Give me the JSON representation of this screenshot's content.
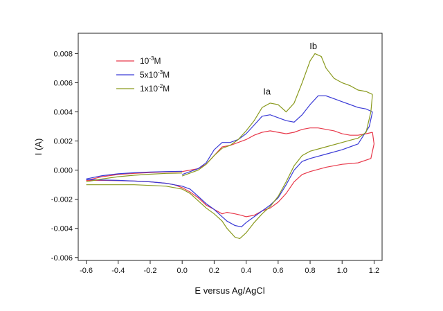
{
  "chart_data": {
    "type": "line",
    "title": "",
    "xlabel": "E versus Ag/AgCl",
    "ylabel": "I (A)",
    "xlim": [
      -0.65,
      1.25
    ],
    "ylim": [
      -0.0062,
      0.0094
    ],
    "x_ticks": [
      -0.6,
      -0.4,
      -0.2,
      0.0,
      0.2,
      0.4,
      0.6,
      0.8,
      1.0,
      1.2
    ],
    "x_tick_labels": [
      "-0.6",
      "-0.4",
      "-0.2",
      "0.0",
      "0.2",
      "0.4",
      "0.6",
      "0.8",
      "1.0",
      "1.2"
    ],
    "y_ticks": [
      -0.006,
      -0.004,
      -0.002,
      0.0,
      0.002,
      0.004,
      0.006,
      0.008
    ],
    "y_tick_labels": [
      "-0.006",
      "-0.004",
      "-0.002",
      "0.000",
      "0.002",
      "0.004",
      "0.006",
      "0.008"
    ],
    "grid": false,
    "legend_position": "top-left",
    "series": [
      {
        "label_base": "10",
        "label_exp": "-3",
        "label_unit": "M",
        "color": "#e8384a",
        "forward": [
          [
            -0.6,
            -0.0007
          ],
          [
            -0.5,
            -0.00045
          ],
          [
            -0.4,
            -0.0003
          ],
          [
            -0.3,
            -0.00022
          ],
          [
            -0.2,
            -0.00017
          ],
          [
            -0.1,
            -0.00012
          ],
          [
            0.0,
            -0.0001
          ]
        ],
        "forward2": [
          [
            0.0,
            -0.0001
          ],
          [
            0.1,
            0.0001
          ],
          [
            0.15,
            0.0004
          ],
          [
            0.2,
            0.001
          ],
          [
            0.25,
            0.0016
          ],
          [
            0.3,
            0.0017
          ],
          [
            0.35,
            0.0019
          ],
          [
            0.4,
            0.0021
          ],
          [
            0.45,
            0.0024
          ],
          [
            0.5,
            0.0026
          ],
          [
            0.55,
            0.0027
          ],
          [
            0.6,
            0.0026
          ],
          [
            0.65,
            0.0025
          ],
          [
            0.7,
            0.0026
          ],
          [
            0.75,
            0.0028
          ],
          [
            0.8,
            0.0029
          ],
          [
            0.85,
            0.0029
          ],
          [
            0.9,
            0.0028
          ],
          [
            0.95,
            0.0027
          ],
          [
            1.0,
            0.0025
          ],
          [
            1.05,
            0.0024
          ],
          [
            1.1,
            0.0024
          ],
          [
            1.15,
            0.0025
          ],
          [
            1.19,
            0.0026
          ]
        ],
        "reverse": [
          [
            1.19,
            0.0026
          ],
          [
            1.2,
            0.0018
          ],
          [
            1.18,
            0.0008
          ],
          [
            1.1,
            0.0005
          ],
          [
            1.0,
            0.0004
          ],
          [
            0.9,
            0.0002
          ],
          [
            0.8,
            -0.0001
          ],
          [
            0.75,
            -0.0003
          ],
          [
            0.7,
            -0.0008
          ],
          [
            0.65,
            -0.0016
          ],
          [
            0.6,
            -0.0022
          ],
          [
            0.55,
            -0.0026
          ],
          [
            0.5,
            -0.0028
          ],
          [
            0.45,
            -0.0031
          ],
          [
            0.4,
            -0.0032
          ],
          [
            0.37,
            -0.0031
          ],
          [
            0.33,
            -0.003
          ],
          [
            0.28,
            -0.0029
          ],
          [
            0.25,
            -0.003
          ],
          [
            0.2,
            -0.0027
          ],
          [
            0.15,
            -0.0024
          ],
          [
            0.1,
            -0.0019
          ],
          [
            0.05,
            -0.0015
          ],
          [
            0.0,
            -0.0012
          ],
          [
            -0.05,
            -0.001
          ],
          [
            -0.1,
            -0.0009
          ],
          [
            -0.2,
            -0.0008
          ],
          [
            -0.3,
            -0.00075
          ],
          [
            -0.4,
            -0.00072
          ],
          [
            -0.5,
            -0.0007
          ],
          [
            -0.6,
            -0.0007
          ]
        ]
      },
      {
        "label_base": "5x10",
        "label_exp": "-3",
        "label_unit": "M",
        "color": "#3a3ad6",
        "forward": [
          [
            -0.6,
            -0.0006
          ],
          [
            -0.5,
            -0.00038
          ],
          [
            -0.4,
            -0.00025
          ],
          [
            -0.3,
            -0.00018
          ],
          [
            -0.2,
            -0.00013
          ],
          [
            -0.1,
            -0.0001
          ],
          [
            0.0,
            -8e-05
          ]
        ],
        "forward2": [
          [
            0.0,
            -0.0003
          ],
          [
            0.1,
            0.0001
          ],
          [
            0.15,
            0.0005
          ],
          [
            0.2,
            0.0014
          ],
          [
            0.25,
            0.0019
          ],
          [
            0.3,
            0.0019
          ],
          [
            0.35,
            0.0021
          ],
          [
            0.4,
            0.0025
          ],
          [
            0.45,
            0.0031
          ],
          [
            0.5,
            0.0037
          ],
          [
            0.55,
            0.0038
          ],
          [
            0.6,
            0.0036
          ],
          [
            0.65,
            0.0034
          ],
          [
            0.7,
            0.0033
          ],
          [
            0.75,
            0.0038
          ],
          [
            0.8,
            0.0045
          ],
          [
            0.85,
            0.0051
          ],
          [
            0.9,
            0.0051
          ],
          [
            0.95,
            0.0049
          ],
          [
            1.0,
            0.0047
          ],
          [
            1.05,
            0.0045
          ],
          [
            1.1,
            0.0043
          ],
          [
            1.15,
            0.0042
          ],
          [
            1.19,
            0.004
          ]
        ],
        "reverse": [
          [
            1.19,
            0.004
          ],
          [
            1.17,
            0.003
          ],
          [
            1.1,
            0.0018
          ],
          [
            1.0,
            0.0014
          ],
          [
            0.9,
            0.0011
          ],
          [
            0.8,
            0.0008
          ],
          [
            0.75,
            0.0006
          ],
          [
            0.7,
            0.0
          ],
          [
            0.65,
            -0.001
          ],
          [
            0.6,
            -0.0019
          ],
          [
            0.55,
            -0.0024
          ],
          [
            0.5,
            -0.0028
          ],
          [
            0.45,
            -0.0032
          ],
          [
            0.4,
            -0.0036
          ],
          [
            0.37,
            -0.0039
          ],
          [
            0.33,
            -0.0038
          ],
          [
            0.28,
            -0.0035
          ],
          [
            0.25,
            -0.0032
          ],
          [
            0.2,
            -0.0027
          ],
          [
            0.15,
            -0.0023
          ],
          [
            0.1,
            -0.0018
          ],
          [
            0.05,
            -0.0013
          ],
          [
            0.0,
            -0.0011
          ],
          [
            -0.1,
            -0.0009
          ],
          [
            -0.2,
            -0.0008
          ],
          [
            -0.3,
            -0.00075
          ],
          [
            -0.4,
            -0.0007
          ],
          [
            -0.5,
            -0.00068
          ],
          [
            -0.6,
            -0.00065
          ]
        ]
      },
      {
        "label_base": "1x10",
        "label_exp": "-2",
        "label_unit": "M",
        "color": "#8a9a1e",
        "forward": [
          [
            -0.6,
            -0.0008
          ],
          [
            -0.5,
            -0.0006
          ],
          [
            -0.4,
            -0.00045
          ],
          [
            -0.3,
            -0.00035
          ],
          [
            -0.2,
            -0.00028
          ],
          [
            -0.1,
            -0.00022
          ],
          [
            0.0,
            -0.0002
          ]
        ],
        "forward2": [
          [
            0.0,
            -0.0004
          ],
          [
            0.1,
            0.0
          ],
          [
            0.15,
            0.0004
          ],
          [
            0.2,
            0.001
          ],
          [
            0.25,
            0.0015
          ],
          [
            0.3,
            0.0017
          ],
          [
            0.35,
            0.0021
          ],
          [
            0.4,
            0.0027
          ],
          [
            0.45,
            0.0034
          ],
          [
            0.5,
            0.0043
          ],
          [
            0.55,
            0.0046
          ],
          [
            0.6,
            0.0045
          ],
          [
            0.65,
            0.004
          ],
          [
            0.7,
            0.0046
          ],
          [
            0.75,
            0.006
          ],
          [
            0.8,
            0.0075
          ],
          [
            0.83,
            0.008
          ],
          [
            0.87,
            0.0078
          ],
          [
            0.9,
            0.007
          ],
          [
            0.95,
            0.0063
          ],
          [
            1.0,
            0.006
          ],
          [
            1.05,
            0.0058
          ],
          [
            1.1,
            0.0055
          ],
          [
            1.15,
            0.0054
          ],
          [
            1.19,
            0.0052
          ]
        ],
        "reverse": [
          [
            1.19,
            0.0052
          ],
          [
            1.18,
            0.004
          ],
          [
            1.15,
            0.0026
          ],
          [
            1.1,
            0.0022
          ],
          [
            1.0,
            0.0019
          ],
          [
            0.9,
            0.0016
          ],
          [
            0.8,
            0.0013
          ],
          [
            0.75,
            0.001
          ],
          [
            0.7,
            0.0003
          ],
          [
            0.65,
            -0.0008
          ],
          [
            0.6,
            -0.0018
          ],
          [
            0.55,
            -0.0025
          ],
          [
            0.5,
            -0.003
          ],
          [
            0.45,
            -0.0036
          ],
          [
            0.4,
            -0.0043
          ],
          [
            0.36,
            -0.0047
          ],
          [
            0.33,
            -0.0046
          ],
          [
            0.28,
            -0.004
          ],
          [
            0.25,
            -0.0035
          ],
          [
            0.2,
            -0.003
          ],
          [
            0.15,
            -0.0026
          ],
          [
            0.1,
            -0.0021
          ],
          [
            0.05,
            -0.0016
          ],
          [
            0.0,
            -0.0013
          ],
          [
            -0.1,
            -0.0011
          ],
          [
            -0.2,
            -0.00105
          ],
          [
            -0.3,
            -0.001
          ],
          [
            -0.4,
            -0.001
          ],
          [
            -0.5,
            -0.001
          ],
          [
            -0.6,
            -0.001
          ]
        ]
      }
    ],
    "annotations": [
      {
        "text": "Ia",
        "x": 0.53,
        "y": 0.0052
      },
      {
        "text": "Ib",
        "x": 0.82,
        "y": 0.0083
      }
    ]
  }
}
